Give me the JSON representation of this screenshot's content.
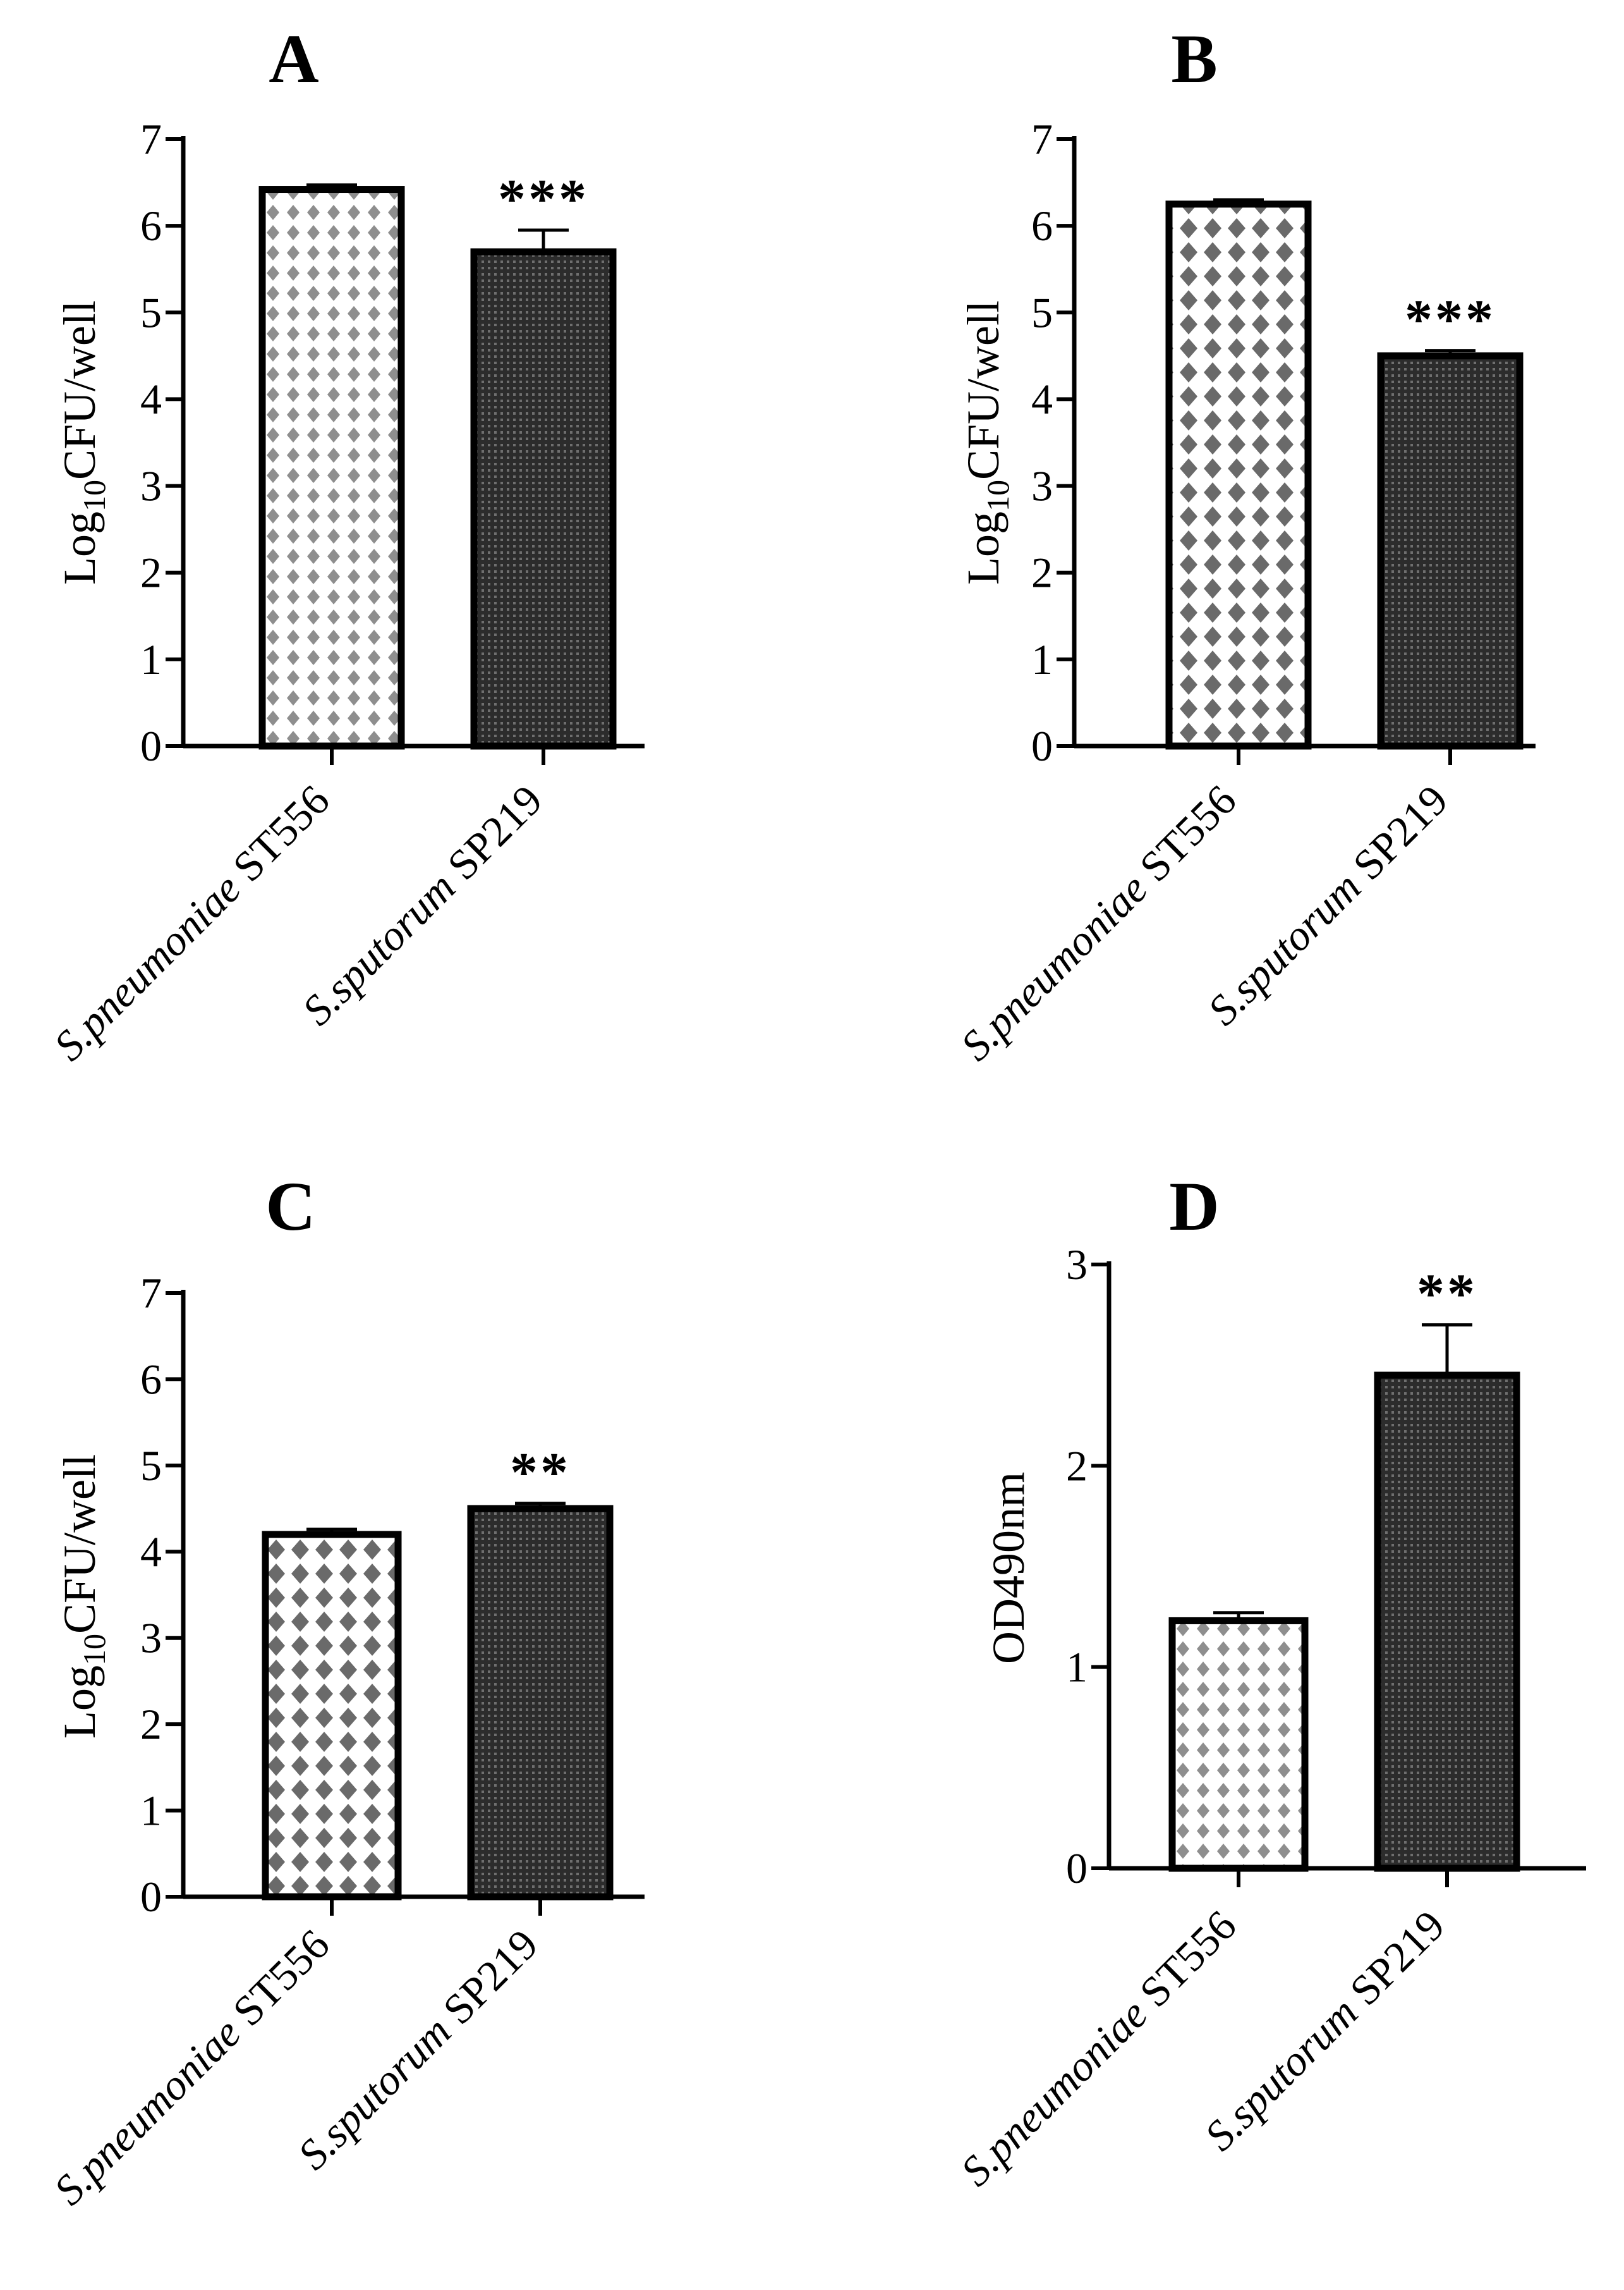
{
  "chart_data": [
    {
      "panel": "A",
      "type": "bar",
      "categories": [
        "S.pneumoniae ST556",
        "S.sputorum SP219"
      ],
      "category_parts": [
        {
          "italic": "S.pneumoniae",
          "plain": " ST556"
        },
        {
          "italic": "S.sputorum",
          "plain": " SP219"
        }
      ],
      "values": [
        6.42,
        5.7
      ],
      "errors": [
        0.05,
        0.25
      ],
      "significance": "***",
      "ylabel": {
        "pre": "Log",
        "sub": "10",
        "post": "CFU/well"
      },
      "ylim": [
        0,
        7
      ],
      "yticks": [
        0,
        1,
        2,
        3,
        4,
        5,
        6,
        7
      ],
      "patterns": [
        "light-diamond",
        "dark-grid"
      ]
    },
    {
      "panel": "B",
      "type": "bar",
      "categories": [
        "S.pneumoniae ST556",
        "S.sputorum SP219"
      ],
      "category_parts": [
        {
          "italic": "S.pneumoniae",
          "plain": " ST556"
        },
        {
          "italic": "S.sputorum",
          "plain": " SP219"
        }
      ],
      "values": [
        6.25,
        4.5
      ],
      "errors": [
        0.05,
        0.06
      ],
      "significance": "***",
      "ylabel": {
        "pre": "Log",
        "sub": "10",
        "post": "CFU/well"
      },
      "ylim": [
        0,
        7
      ],
      "yticks": [
        0,
        1,
        2,
        3,
        4,
        5,
        6,
        7
      ],
      "patterns": [
        "dark-diamond",
        "dark-grid"
      ]
    },
    {
      "panel": "C",
      "type": "bar",
      "categories": [
        "S.pneumoniae ST556",
        "S.sputorum SP219"
      ],
      "category_parts": [
        {
          "italic": "S.pneumoniae",
          "plain": " ST556"
        },
        {
          "italic": "S.sputorum",
          "plain": " SP219"
        }
      ],
      "values": [
        4.2,
        4.5
      ],
      "errors": [
        0.06,
        0.06
      ],
      "significance": "**",
      "ylabel": {
        "pre": "Log",
        "sub": "10",
        "post": "CFU/well"
      },
      "ylim": [
        0,
        7
      ],
      "yticks": [
        0,
        1,
        2,
        3,
        4,
        5,
        6,
        7
      ],
      "patterns": [
        "dark-diamond",
        "dark-grid"
      ]
    },
    {
      "panel": "D",
      "type": "bar",
      "categories": [
        "S.pneumoniae ST556",
        "S.sputorum SP219"
      ],
      "category_parts": [
        {
          "italic": "S.pneumoniae",
          "plain": " ST556"
        },
        {
          "italic": "S.sputorum",
          "plain": " SP219"
        }
      ],
      "values": [
        1.23,
        2.45
      ],
      "errors": [
        0.04,
        0.25
      ],
      "significance": "**",
      "ylabel": {
        "pre": "OD490nm",
        "sub": "",
        "post": ""
      },
      "ylim": [
        0,
        3
      ],
      "yticks": [
        0,
        1,
        2,
        3
      ],
      "patterns": [
        "light-diamond",
        "dark-grid"
      ]
    }
  ]
}
